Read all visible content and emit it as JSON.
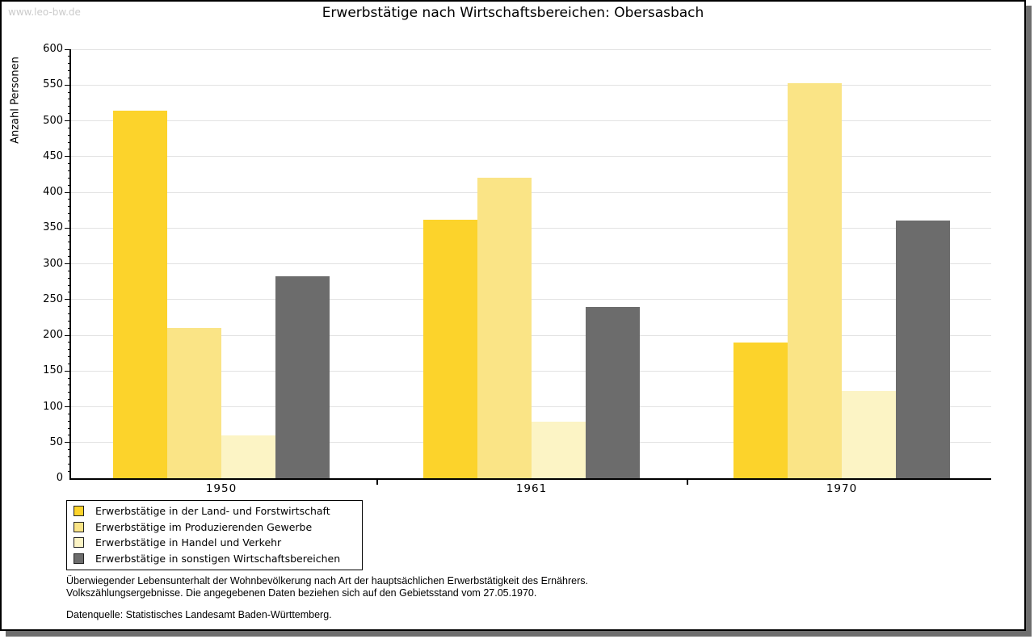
{
  "watermark": "www.leo-bw.de",
  "title": "Erwerbstätige nach Wirtschaftsbereichen: Obersasbach",
  "chart_data": {
    "type": "bar",
    "title": "Erwerbstätige nach Wirtschaftsbereichen: Obersasbach",
    "xlabel": "",
    "ylabel": "Anzahl Personen",
    "ylim": [
      0,
      600
    ],
    "ytick_step": 50,
    "yminor_tick_step": 10,
    "grid": true,
    "legend_position": "bottom-left",
    "categories": [
      "1950",
      "1961",
      "1970"
    ],
    "series": [
      {
        "name": "Erwerbstätige in der Land- und Forstwirtschaft",
        "color": "#FCD32B",
        "values": [
          514,
          362,
          190
        ]
      },
      {
        "name": "Erwerbstätige im Produzierenden Gewerbe",
        "color": "#FAE486",
        "values": [
          210,
          420,
          552
        ]
      },
      {
        "name": "Erwerbstätige in Handel und Verkehr",
        "color": "#FCF4C5",
        "values": [
          60,
          79,
          122
        ]
      },
      {
        "name": "Erwerbstätige in sonstigen Wirtschaftsbereichen",
        "color": "#6C6C6C",
        "values": [
          282,
          240,
          360
        ]
      }
    ]
  },
  "footer": {
    "line1": "Überwiegender Lebensunterhalt der Wohnbevölkerung nach Art der hauptsächlichen Erwerbstätigkeit des Ernährers.",
    "line2": "Volkszählungsergebnisse. Die angegebenen Daten beziehen sich auf den Gebietsstand vom 27.05.1970.",
    "source": "Datenquelle: Statistisches Landesamt Baden-Württemberg."
  },
  "colors": {
    "gridline": "#e2e2e2",
    "axis": "#000000",
    "watermark": "#cbcbcb",
    "shadow": "#6e6e6e"
  }
}
